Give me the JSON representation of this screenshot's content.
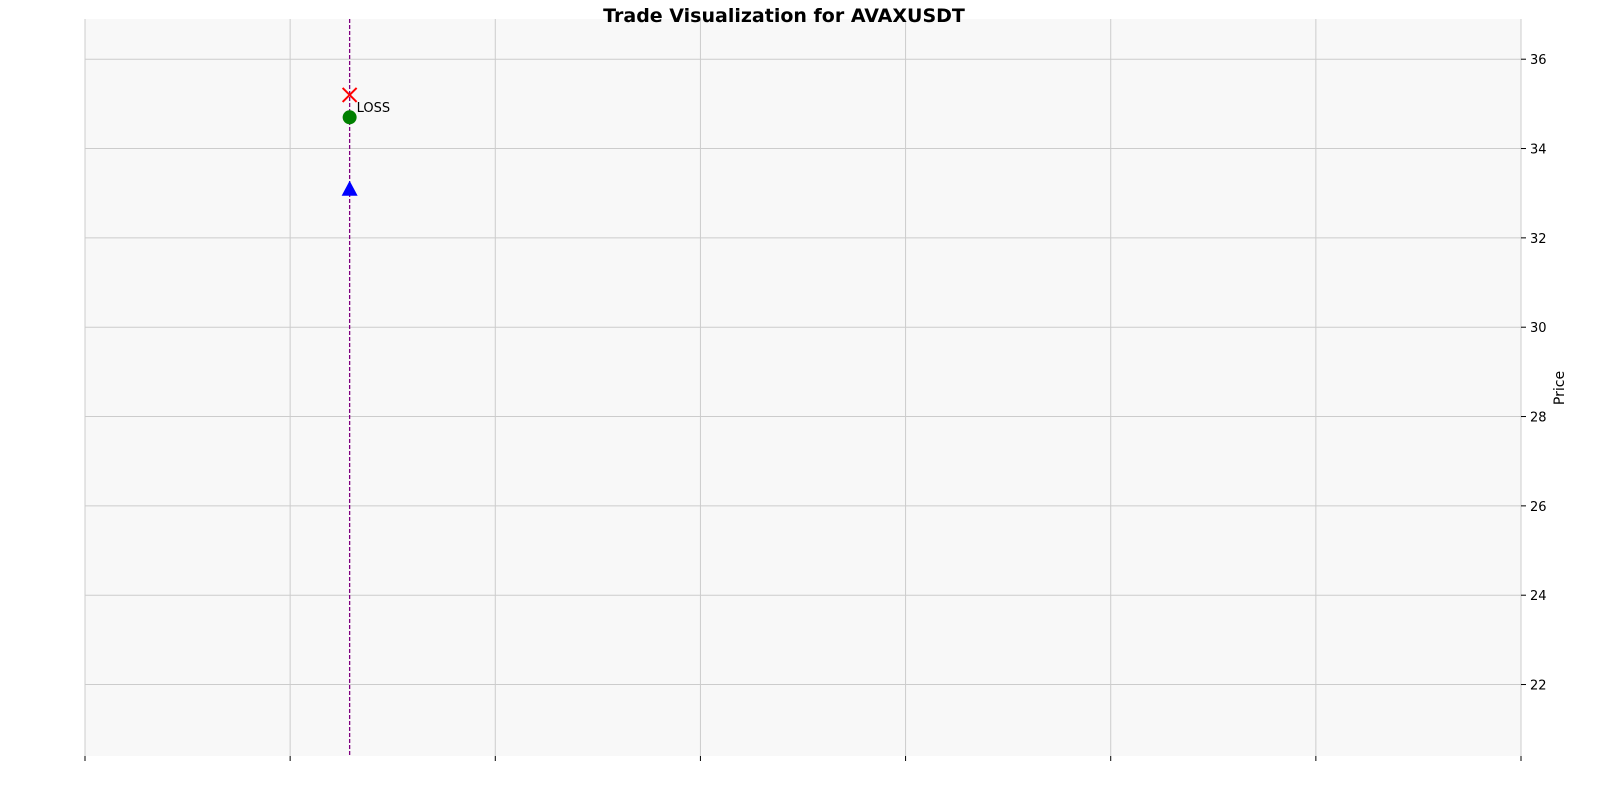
{
  "chart_data": {
    "type": "scatter",
    "title": "Trade Visualization for AVAXUSDT",
    "xlabel": "",
    "ylabel": "Price",
    "y_axis_side": "right",
    "ylim": [
      20.4,
      36.9
    ],
    "x_ticks": [
      0,
      1,
      2,
      3,
      4,
      5,
      6,
      7
    ],
    "x_tick_labels": [
      "",
      "",
      "",
      "",
      "",
      "",
      "",
      ""
    ],
    "xlim": [
      0,
      7
    ],
    "y_ticks": [
      22,
      24,
      26,
      28,
      30,
      32,
      34,
      36
    ],
    "y_tick_labels": [
      "22",
      "24",
      "26",
      "28",
      "30",
      "32",
      "34",
      "36"
    ],
    "grid": true,
    "trade_line": {
      "x": 1.29,
      "color": "#800080",
      "style": "dashed"
    },
    "markers": [
      {
        "name": "entry",
        "x": 1.29,
        "y": 33.1,
        "shape": "triangle-up",
        "color": "#0000ff"
      },
      {
        "name": "exit",
        "x": 1.29,
        "y": 34.7,
        "shape": "circle",
        "color": "#008000"
      },
      {
        "name": "stop",
        "x": 1.29,
        "y": 35.2,
        "shape": "x",
        "color": "#ff0000"
      }
    ],
    "annotations": [
      {
        "text": "LOSS",
        "x": 1.29,
        "y": 35.2
      }
    ],
    "colors": {
      "plot_background": "#f8f8f8",
      "grid": "#cccccc"
    }
  }
}
